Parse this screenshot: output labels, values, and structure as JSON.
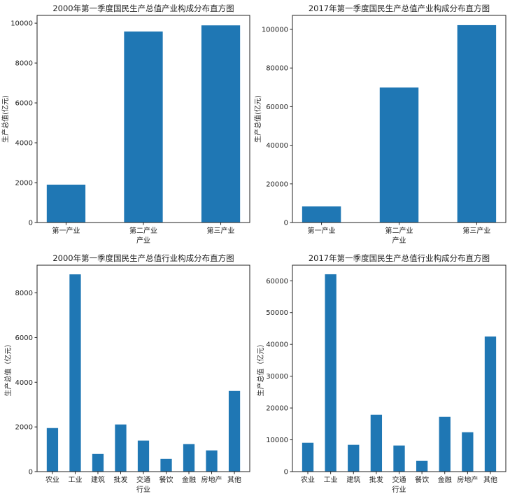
{
  "chart_data": [
    {
      "type": "bar",
      "title": "2000年第一季度国民生产总值产业构成分布直方图",
      "xlabel": "产业",
      "ylabel": "生产总值(亿元)",
      "categories": [
        "第一产业",
        "第二产业",
        "第三产业"
      ],
      "values": [
        1900,
        9580,
        9890
      ],
      "ylim": [
        0,
        10390
      ],
      "yticks": [
        0,
        2000,
        4000,
        6000,
        8000,
        10000
      ],
      "grid": false,
      "color": "#1f77b4"
    },
    {
      "type": "bar",
      "title": "2017年第一季度国民生产总值产业构成分布直方图",
      "xlabel": "产业",
      "ylabel": "生产总值(亿元)",
      "categories": [
        "第一产业",
        "第二产业",
        "第三产业"
      ],
      "values": [
        8330,
        69900,
        102200
      ],
      "ylim": [
        0,
        107250
      ],
      "yticks": [
        0,
        20000,
        40000,
        60000,
        80000,
        100000
      ],
      "grid": false,
      "color": "#1f77b4"
    },
    {
      "type": "bar",
      "title": "2000年第一季度国民生产总值行业构成分布直方图",
      "xlabel": "行业",
      "ylabel": "生产总值（亿元）",
      "categories": [
        "农业",
        "工业",
        "建筑",
        "批发",
        "交通",
        "餐饮",
        "金融",
        "房地产",
        "其他"
      ],
      "values": [
        1950,
        8830,
        790,
        2110,
        1390,
        570,
        1230,
        950,
        3610
      ],
      "ylim": [
        0,
        9240
      ],
      "yticks": [
        0,
        2000,
        4000,
        6000,
        8000
      ],
      "grid": false,
      "color": "#1f77b4"
    },
    {
      "type": "bar",
      "title": "2017年第一季度国民生产总值行业构成分布直方图",
      "xlabel": "行业",
      "ylabel": "生产总值（亿元）",
      "categories": [
        "农业",
        "工业",
        "建筑",
        "批发",
        "交通",
        "餐饮",
        "金融",
        "房地产",
        "其他"
      ],
      "values": [
        9080,
        62050,
        8430,
        17880,
        8210,
        3370,
        17220,
        12380,
        42490
      ],
      "ylim": [
        0,
        64900
      ],
      "yticks": [
        0,
        10000,
        20000,
        30000,
        40000,
        50000,
        60000
      ],
      "grid": false,
      "color": "#1f77b4"
    }
  ]
}
